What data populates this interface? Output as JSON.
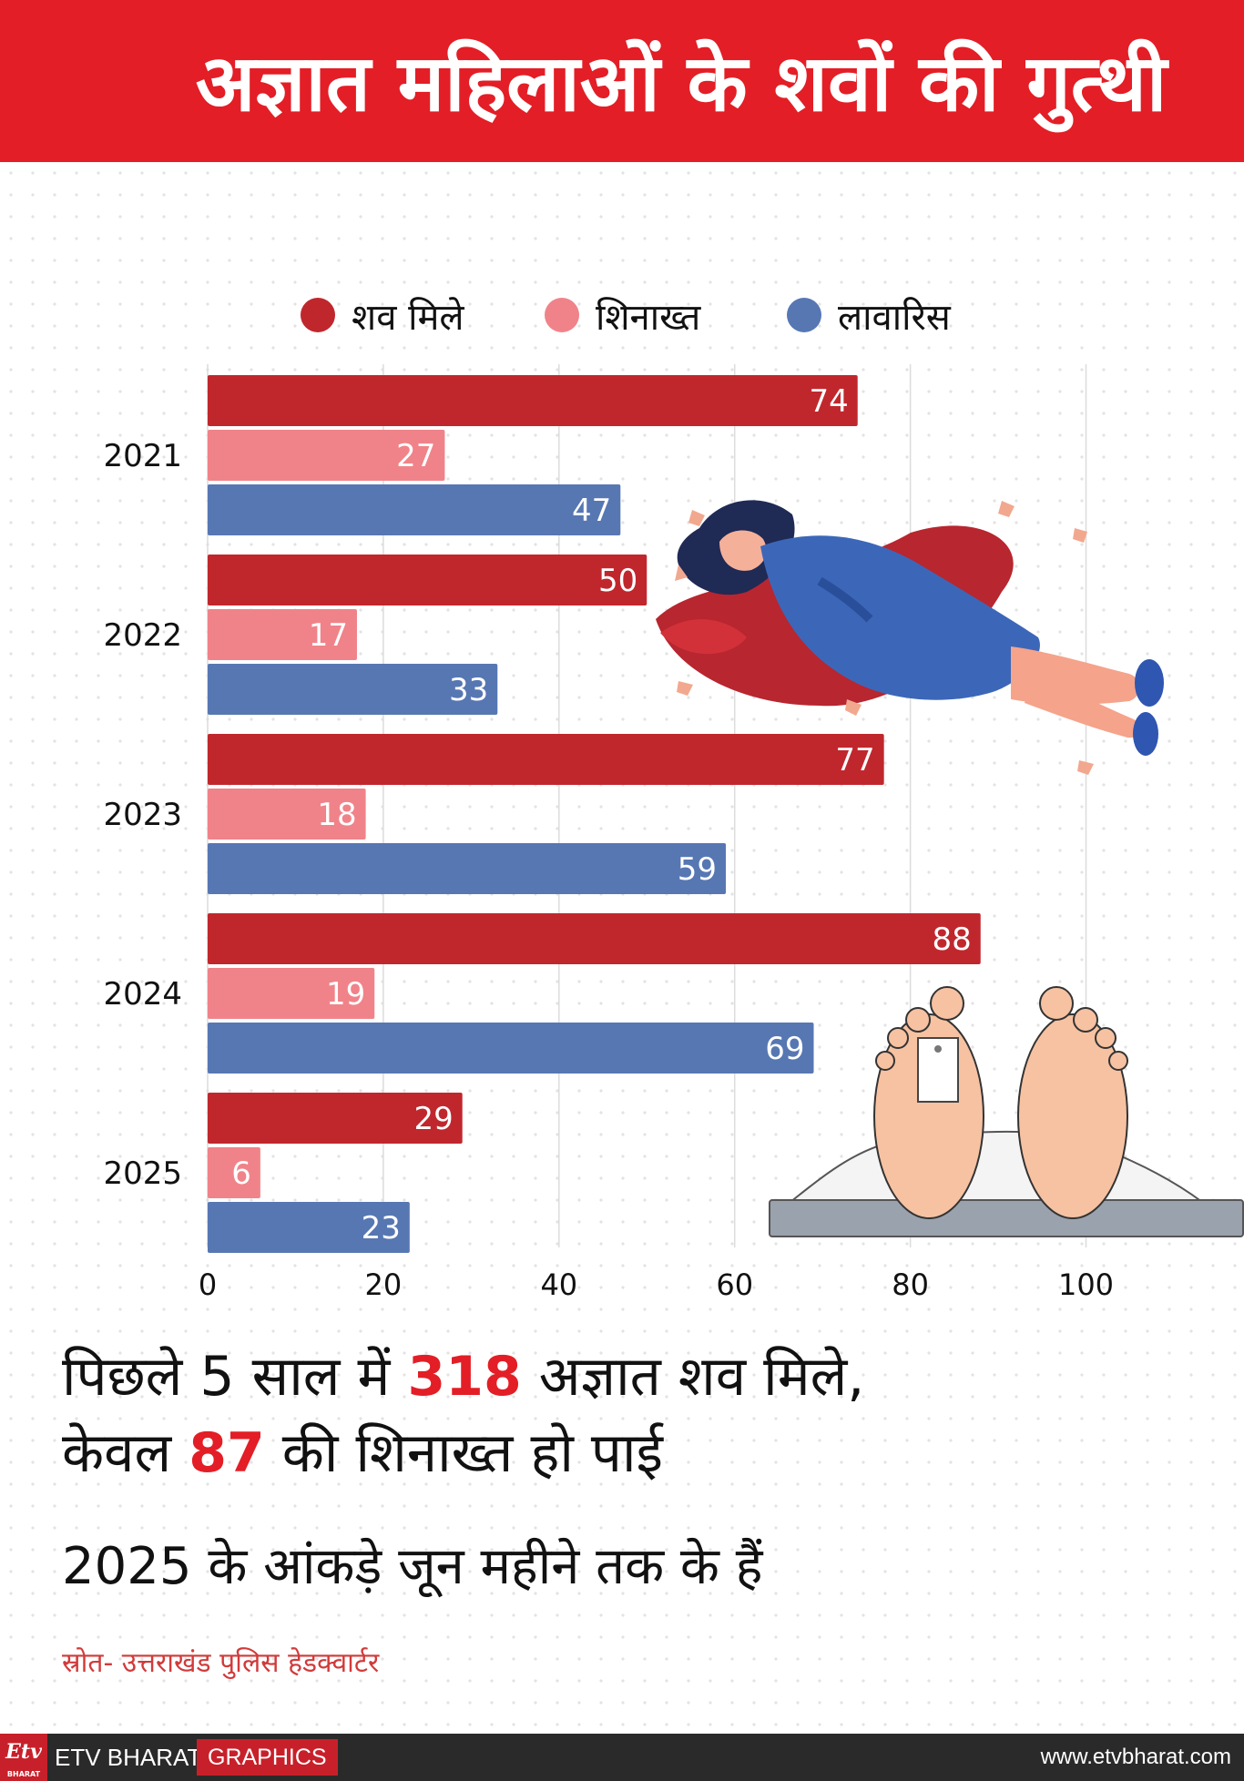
{
  "header": {
    "title": "अज्ञात महिलाओं के शवों की गुत्थी"
  },
  "legend": [
    {
      "label": "शव मिले",
      "color": "#c0272d"
    },
    {
      "label": "शिनाख्त",
      "color": "#f08389"
    },
    {
      "label": "लावारिस",
      "color": "#5777b3"
    }
  ],
  "chart_data": {
    "type": "bar",
    "orientation": "horizontal",
    "categories": [
      "2021",
      "2022",
      "2023",
      "2024",
      "2025"
    ],
    "series": [
      {
        "name": "शव मिले",
        "values": [
          74,
          50,
          77,
          88,
          29
        ],
        "color": "#c0272d"
      },
      {
        "name": "शिनाख्त",
        "values": [
          27,
          17,
          18,
          19,
          6
        ],
        "color": "#f08389"
      },
      {
        "name": "लावारिस",
        "values": [
          47,
          33,
          59,
          69,
          23
        ],
        "color": "#5777b3"
      }
    ],
    "x_ticks": [
      "0",
      "20",
      "40",
      "60",
      "80",
      "100"
    ],
    "xlim": [
      0,
      120
    ],
    "grid": true,
    "legend": "top",
    "xlabel": "",
    "ylabel": ""
  },
  "summary": {
    "line1_a": "पिछले 5 साल में ",
    "line1_num": "318",
    "line1_b": " अज्ञात शव मिले,",
    "line2_a": "केवल ",
    "line2_num": "87",
    "line2_b": " की शिनाख्त हो पाई"
  },
  "note": "2025 के आंकड़े जून महीने तक के हैं",
  "source": "स्रोत- उत्तराखंड पुलिस हेडक्वार्टर",
  "footer": {
    "logo_text": "Etv",
    "logo_sub": "BHARAT",
    "brand": "ETV BHARAT",
    "graphics": "GRAPHICS",
    "website": "www.etvbharat.com"
  }
}
